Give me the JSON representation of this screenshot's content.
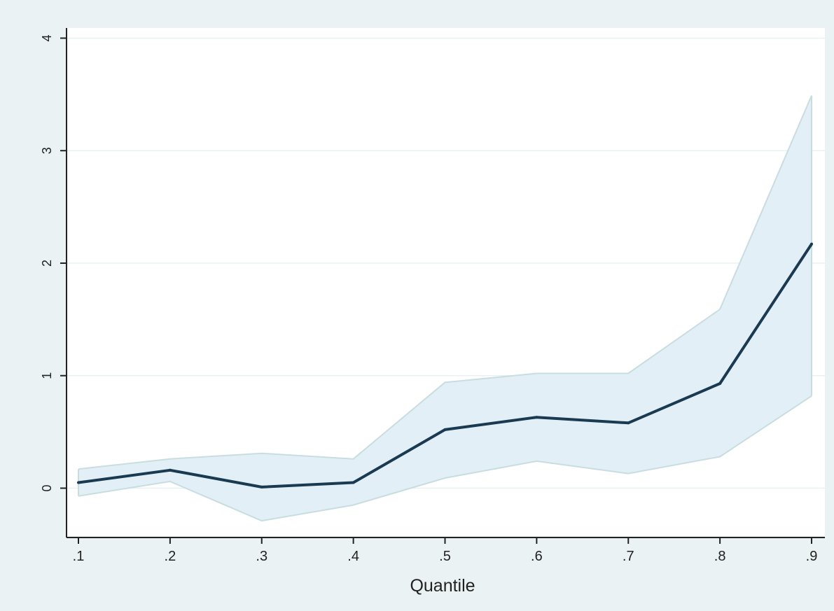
{
  "chart_data": {
    "type": "line",
    "title": "",
    "xlabel": "Quantile",
    "ylabel": "",
    "x": [
      0.1,
      0.2,
      0.3,
      0.4,
      0.5,
      0.6,
      0.7,
      0.8,
      0.9
    ],
    "x_tick_labels": [
      ".1",
      ".2",
      ".3",
      ".4",
      ".5",
      ".6",
      ".7",
      ".8",
      ".9"
    ],
    "y_ticks": [
      0,
      1,
      2,
      3,
      4
    ],
    "y_tick_labels": [
      "0",
      "1",
      "2",
      "3",
      "4"
    ],
    "xlim": [
      0.1,
      0.9
    ],
    "ylim": [
      -0.42,
      4.05
    ],
    "grid": true,
    "series": [
      {
        "values": [
          0.05,
          0.16,
          0.01,
          0.05,
          0.52,
          0.63,
          0.58,
          0.93,
          2.17
        ]
      }
    ],
    "confidence_band": {
      "upper": [
        0.17,
        0.26,
        0.31,
        0.26,
        0.94,
        1.02,
        1.02,
        1.59,
        3.49
      ],
      "lower": [
        -0.07,
        0.06,
        -0.29,
        -0.15,
        0.09,
        0.24,
        0.13,
        0.28,
        0.82
      ]
    },
    "colors": {
      "outer_background": "#eaf2f3",
      "plot_background": "#ffffff",
      "grid": "#e9f0f1",
      "axis": "#222222",
      "line": "#1a3a52",
      "band_fill": "#e3eff7",
      "band_edge": "#c8dde0"
    }
  }
}
